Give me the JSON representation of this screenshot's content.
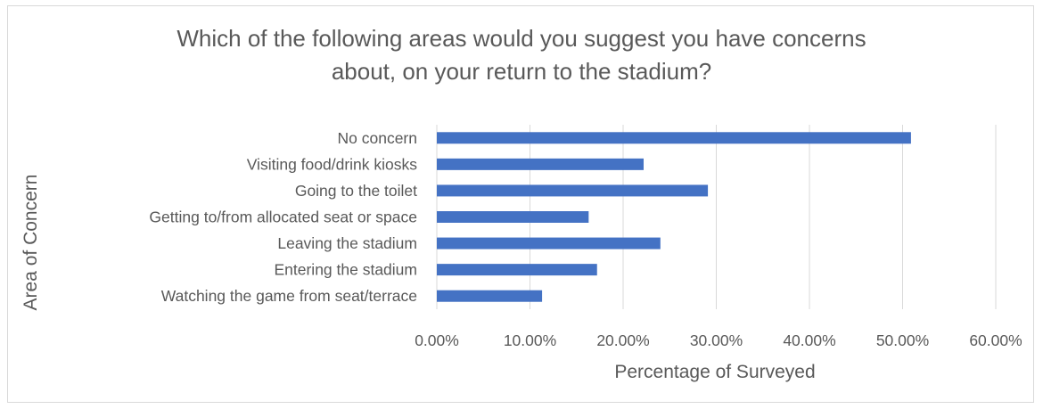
{
  "chart_data": {
    "type": "bar",
    "orientation": "horizontal",
    "title_lines": [
      "Which of the following areas would you suggest you have concerns",
      "about, on your return to the stadium?"
    ],
    "xlabel": "Percentage of Surveyed",
    "ylabel": "Area of Concern",
    "categories": [
      "No concern",
      "Visiting food/drink kiosks",
      "Going to the toilet",
      "Getting to/from allocated seat or space",
      "Leaving the stadium",
      "Entering the stadium",
      "Watching the game from seat/terrace"
    ],
    "values": [
      0.509,
      0.222,
      0.291,
      0.163,
      0.24,
      0.172,
      0.113
    ],
    "xlim": [
      0,
      0.6
    ],
    "x_ticks": [
      "0.00%",
      "10.00%",
      "20.00%",
      "30.00%",
      "40.00%",
      "50.00%",
      "60.00%"
    ],
    "grid": true,
    "legend": "none",
    "bar_color": "#4472c4",
    "grid_color": "#d9d9d9"
  }
}
